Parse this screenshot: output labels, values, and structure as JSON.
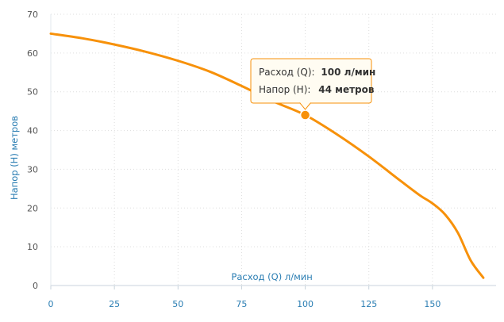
{
  "chart_data": {
    "type": "line",
    "title": "",
    "xlabel": "Расход (Q) л/мин",
    "ylabel": "Напор (H) метров",
    "xlim": [
      0,
      175
    ],
    "ylim": [
      0,
      70
    ],
    "x_ticks": [
      0,
      25,
      50,
      75,
      100,
      125,
      150
    ],
    "y_ticks": [
      0,
      10,
      20,
      30,
      40,
      50,
      60,
      70
    ],
    "grid": true,
    "series": [
      {
        "x": [
          0,
          12.5,
          25,
          37.5,
          50,
          62.5,
          75,
          87.5,
          100,
          112.5,
          125,
          137.5,
          145,
          150,
          155,
          160,
          165,
          170
        ],
        "y": [
          65,
          63.8,
          62.2,
          60.3,
          58,
          55.2,
          51.5,
          47.5,
          44,
          39,
          33.3,
          27,
          23.3,
          21.2,
          18.3,
          13.6,
          6.5,
          2
        ]
      }
    ],
    "tooltip": {
      "x_label": "Расход (Q):",
      "x_value": "100 л/мин",
      "y_label": "Напор (H):",
      "y_value": "44 метров",
      "point_x": 100,
      "point_y": 44
    }
  },
  "colors": {
    "line": "#f7910a",
    "axis_text": "#2b7eb3",
    "grid": "#dddddd",
    "tooltip_border": "#f7910a",
    "tooltip_bg": "#fffcf2"
  }
}
